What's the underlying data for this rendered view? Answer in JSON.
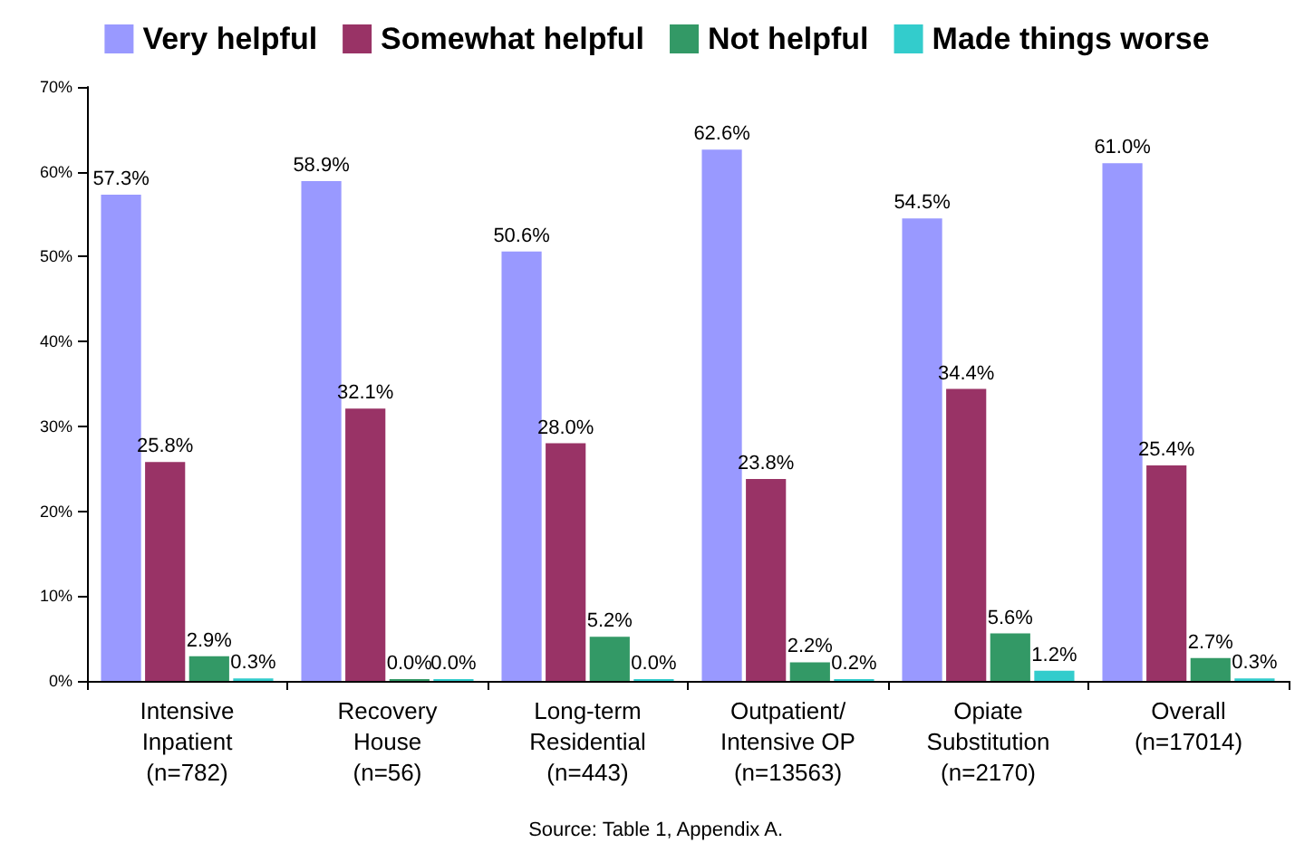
{
  "chart_data": {
    "type": "bar",
    "categories": [
      "Intensive\nInpatient\n(n=782)",
      "Recovery\nHouse\n(n=56)",
      "Long-term\nResidential\n(n=443)",
      "Outpatient/\nIntensive OP\n(n=13563)",
      "Opiate\nSubstitution\n(n=2170)",
      "Overall\n(n=17014)"
    ],
    "series": [
      {
        "name": "Very helpful",
        "color": "#9999ff",
        "values": [
          57.3,
          58.9,
          50.6,
          62.6,
          54.5,
          61.0
        ],
        "value_labels": [
          "57.3%",
          "58.9%",
          "50.6%",
          "62.6%",
          "54.5%",
          "61.0%"
        ]
      },
      {
        "name": "Somewhat helpful",
        "color": "#993366",
        "values": [
          25.8,
          32.1,
          28.0,
          23.8,
          34.4,
          25.4
        ],
        "value_labels": [
          "25.8%",
          "32.1%",
          "28.0%",
          "23.8%",
          "34.4%",
          "25.4%"
        ]
      },
      {
        "name": "Not helpful",
        "color": "#339966",
        "values": [
          2.9,
          0.0,
          5.2,
          2.2,
          5.6,
          2.7
        ],
        "value_labels": [
          "2.9%",
          "0.0%",
          "5.2%",
          "2.2%",
          "5.6%",
          "2.7%"
        ]
      },
      {
        "name": "Made things worse",
        "color": "#33cccc",
        "values": [
          0.3,
          0.0,
          0.0,
          0.2,
          1.2,
          0.3
        ],
        "value_labels": [
          "0.3%",
          "0.0%",
          "0.0%",
          "0.2%",
          "1.2%",
          "0.3%"
        ]
      }
    ],
    "ylim": [
      0,
      70
    ],
    "yticks": [
      {
        "value": 0,
        "label": "0%"
      },
      {
        "value": 10,
        "label": "10%"
      },
      {
        "value": 20,
        "label": "20%"
      },
      {
        "value": 30,
        "label": "30%"
      },
      {
        "value": 40,
        "label": "40%"
      },
      {
        "value": 50,
        "label": "50%"
      },
      {
        "value": 60,
        "label": "60%"
      },
      {
        "value": 70,
        "label": "70%"
      }
    ],
    "grid": false,
    "legend": "top",
    "annotations": [
      "Source: Table 1, Appendix A."
    ]
  }
}
